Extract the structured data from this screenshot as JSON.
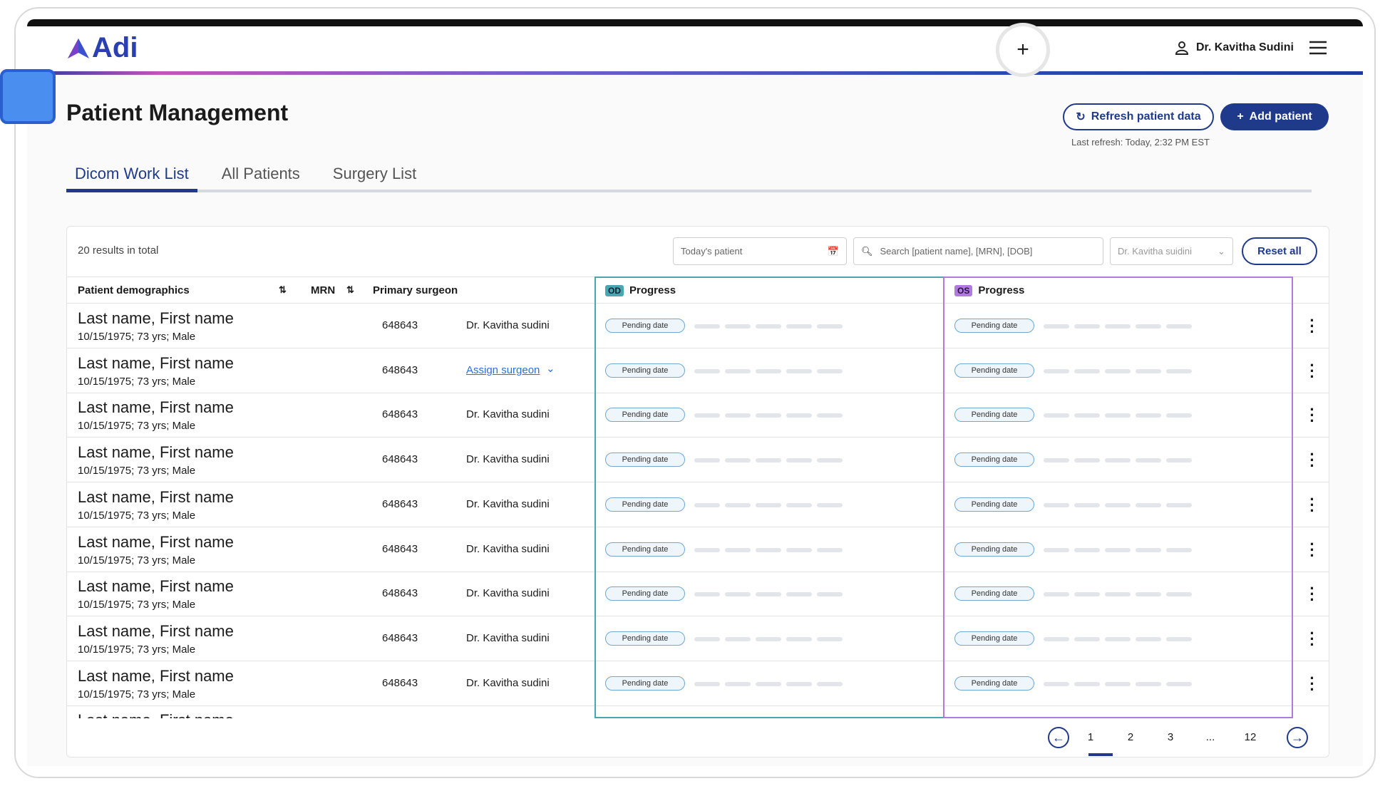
{
  "header": {
    "logo": "Adi",
    "user": "Dr. Kavitha Sudini"
  },
  "page": {
    "title": "Patient Management",
    "refresh_button": "Refresh patient data",
    "add_button": "Add patient",
    "last_refresh": "Last refresh: Today, 2:32 PM EST"
  },
  "tabs": [
    "Dicom Work List",
    "All Patients",
    "Surgery List"
  ],
  "toolbar": {
    "results": "20 results in total",
    "date_filter": "Today's patient",
    "search": "Search [patient name], [MRN], [DOB]",
    "surgeon_filter": "Dr. Kavitha suidini",
    "reset": "Reset all"
  },
  "table": {
    "columns": [
      "Patient demographics",
      "MRN",
      "Primary surgeon",
      "Progress",
      "Progress"
    ],
    "eye_badges": [
      "OD",
      "OS"
    ],
    "rows": [
      {
        "name": "Last name, First name",
        "details": "10/15/1975; 73 yrs; Male",
        "mrn": "648643",
        "surgeon": "Dr. Kavitha sudini",
        "od": "Pending date",
        "os": "Pending date"
      },
      {
        "name": "Last name, First name",
        "details": "10/15/1975; 73 yrs; Male",
        "mrn": "648643",
        "assign": "Assign surgeon",
        "od": "Pending date",
        "os": "Pending date"
      },
      {
        "name": "Last name, First name",
        "details": "10/15/1975; 73 yrs; Male",
        "mrn": "648643",
        "surgeon": "Dr. Kavitha sudini",
        "od": "Pending date",
        "os": "Pending date"
      },
      {
        "name": "Last name, First name",
        "details": "10/15/1975; 73 yrs; Male",
        "mrn": "648643",
        "surgeon": "Dr. Kavitha sudini",
        "od": "Pending date",
        "os": "Pending date"
      },
      {
        "name": "Last name, First name",
        "details": "10/15/1975; 73 yrs; Male",
        "mrn": "648643",
        "surgeon": "Dr. Kavitha sudini",
        "od": "Pending date",
        "os": "Pending date"
      },
      {
        "name": "Last name, First name",
        "details": "10/15/1975; 73 yrs; Male",
        "mrn": "648643",
        "surgeon": "Dr. Kavitha sudini",
        "od": "Pending date",
        "os": "Pending date"
      },
      {
        "name": "Last name, First name",
        "details": "10/15/1975; 73 yrs; Male",
        "mrn": "648643",
        "surgeon": "Dr. Kavitha sudini",
        "od": "Pending date",
        "os": "Pending date"
      },
      {
        "name": "Last name, First name",
        "details": "10/15/1975; 73 yrs; Male",
        "mrn": "648643",
        "surgeon": "Dr. Kavitha sudini",
        "od": "Pending date",
        "os": "Pending date"
      },
      {
        "name": "Last name, First name",
        "details": "10/15/1975; 73 yrs; Male",
        "mrn": "648643",
        "surgeon": "Dr. Kavitha sudini",
        "od": "Pending date",
        "os": "Pending date"
      },
      {
        "name": "Last name, First name"
      }
    ]
  },
  "pagination": [
    "1",
    "2",
    "3",
    "...",
    "12"
  ]
}
